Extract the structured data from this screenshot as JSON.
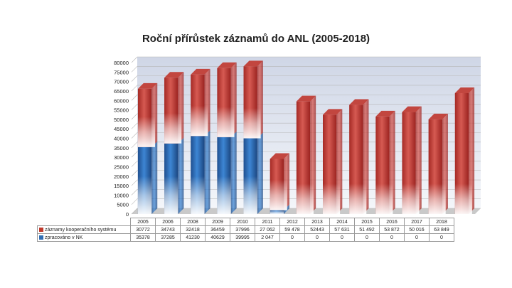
{
  "chart_data": {
    "type": "bar",
    "stacked": true,
    "title": "Roční přírůstek záznamů do ANL (2005-2018)",
    "categories": [
      "2005",
      "2006",
      "2008",
      "2009",
      "2010",
      "2011",
      "2012",
      "2013",
      "2014",
      "2015",
      "2016",
      "2017",
      "2018"
    ],
    "series": [
      {
        "name": "zpracováno v NK",
        "color": "#2f6db3",
        "values": [
          35378,
          37285,
          41230,
          40629,
          39995,
          2047,
          0,
          0,
          0,
          0,
          0,
          0,
          0
        ],
        "labels": [
          "35378",
          "37285",
          "41230",
          "40629",
          "39995",
          "2 047",
          "0",
          "0",
          "0",
          "0",
          "0",
          "0",
          "0"
        ]
      },
      {
        "name": "záznamy kooperačního systému",
        "color": "#c0392b",
        "values": [
          30772,
          34743,
          32418,
          36459,
          37996,
          27062,
          59478,
          52443,
          57631,
          51492,
          53872,
          50016,
          63849
        ],
        "labels": [
          "30772",
          "34743",
          "32418",
          "36459",
          "37996",
          "27 062",
          "59 478",
          "52443",
          "57 631",
          "51 492",
          "53 872",
          "50 016",
          "63 849"
        ]
      }
    ],
    "ylim": [
      0,
      80000
    ],
    "yticks": [
      "0",
      "5000",
      "10000",
      "15000",
      "20000",
      "25000",
      "30000",
      "35000",
      "40000",
      "45000",
      "50000",
      "55000",
      "60000",
      "65000",
      "70000",
      "75000",
      "80000"
    ],
    "grid": true,
    "legend": "data-table-below"
  }
}
